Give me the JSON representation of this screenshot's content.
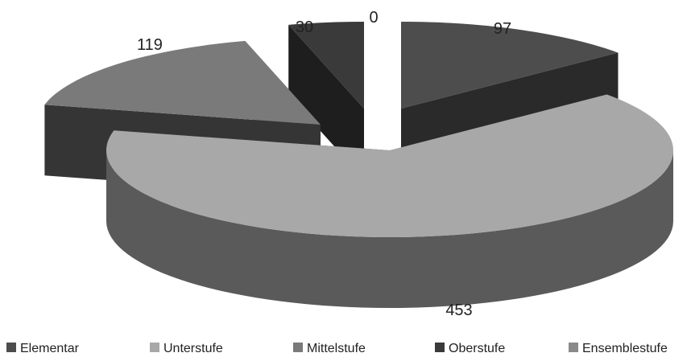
{
  "chart_data": {
    "type": "pie",
    "style": "3d-exploded",
    "categories": [
      "Elementar",
      "Unterstufe",
      "Mittelstufe",
      "Oberstufe",
      "Ensemblestufe"
    ],
    "values": [
      97,
      453,
      119,
      30,
      0
    ],
    "data_labels": [
      "97",
      "453",
      "119",
      "30",
      "0"
    ],
    "colors": [
      "#4d4d4d",
      "#a8a8a8",
      "#7a7a7a",
      "#3a3a3a",
      "#8a8a8a"
    ],
    "side_colors": [
      "#2a2a2a",
      "#5a5a5a",
      "#353535",
      "#1e1e1e",
      "#555555"
    ],
    "legend_position": "bottom",
    "title": ""
  }
}
